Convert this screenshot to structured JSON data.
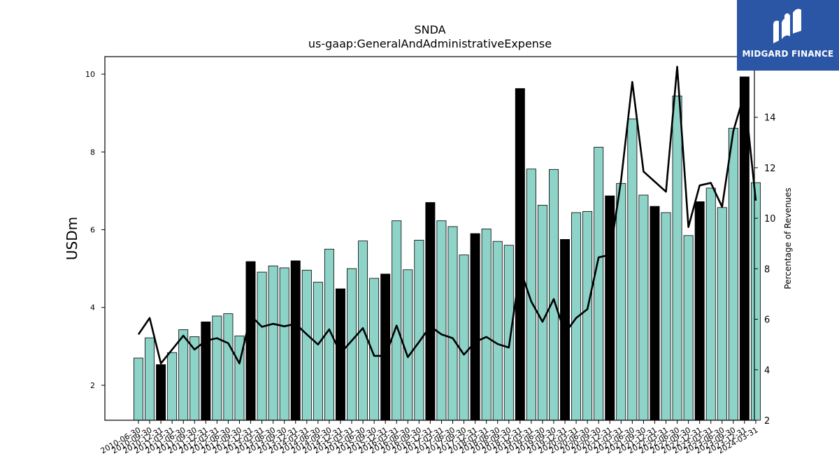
{
  "chart_data": {
    "type": "bar",
    "title": "SNDA",
    "subtitle": "us-gaap:GeneralAndAdministrativeExpense",
    "ylabel": "USDm",
    "y2label": "Percentage of Revenues",
    "ylim": [
      1.1,
      10.45
    ],
    "y2lim": [
      2,
      16.4
    ],
    "yticks": [
      2,
      4,
      6,
      8,
      10
    ],
    "y2ticks": [
      2,
      4,
      6,
      8,
      10,
      12,
      14
    ],
    "categories": [
      "2010-06-30",
      "2010-09-30",
      "2010-12-31",
      "2011-03-31",
      "2011-06-30",
      "2011-09-30",
      "2011-12-31",
      "2012-03-31",
      "2012-06-30",
      "2012-09-30",
      "2012-12-31",
      "2013-03-31",
      "2013-06-30",
      "2013-09-30",
      "2013-12-31",
      "2014-03-31",
      "2014-06-30",
      "2014-09-30",
      "2014-12-31",
      "2015-03-31",
      "2015-06-30",
      "2015-09-30",
      "2015-12-31",
      "2016-03-31",
      "2016-06-30",
      "2016-09-30",
      "2016-12-31",
      "2017-03-31",
      "2017-06-30",
      "2017-09-30",
      "2017-12-31",
      "2018-03-31",
      "2018-06-30",
      "2018-09-30",
      "2018-12-31",
      "2019-03-31",
      "2019-06-30",
      "2019-09-30",
      "2019-12-31",
      "2020-03-31",
      "2020-06-30",
      "2020-09-30",
      "2020-12-31",
      "2021-03-31",
      "2021-06-30",
      "2021-09-30",
      "2021-12-31",
      "2022-03-31",
      "2022-06-30",
      "2022-09-30",
      "2022-12-31",
      "2023-03-31",
      "2023-06-30",
      "2023-09-30",
      "2023-12-31",
      "2024-03-31"
    ],
    "xtick_labels": [
      "2010-06-30",
      "2010-09-30",
      "2010-12-31",
      "2011-03-31",
      "2011-06-30",
      "2011-09-30",
      "2011-12-31",
      "2012-03-31",
      "2012-06-30",
      "2012-09-30",
      "2012-12-31",
      "2013-03-31",
      "2013-06-30",
      "2013-09-30",
      "2013-12-31",
      "2014-03-31",
      "2014-06-30",
      "2014-09-30",
      "2014-12-31",
      "2015-03-31",
      "2015-06-30",
      "2015-09-30",
      "2015-12-31",
      "2016-03-31",
      "2016-06-30",
      "2016-09-30",
      "2016-12-31",
      "2017-03-31",
      "2017-06-30",
      "2017-09-30",
      "2017-12-31",
      "2018-03-31",
      "2018-06-30",
      "2018-09-30",
      "2018-12-31",
      "2019-03-31",
      "2019-06-30",
      "2019-09-30",
      "2019-12-31",
      "2020-03-31",
      "2020-06-30",
      "2020-09-30",
      "2020-12-31",
      "2021-03-31",
      "2021-06-30",
      "2021-09-30",
      "2021-12-31",
      "2022-03-31",
      "2022-06-30",
      "2022-09-30",
      "2022-12-31",
      "2023-03-31",
      "2023-06-30",
      "2023-09-30",
      "2023-12-31",
      "2024-03-31"
    ],
    "series": [
      {
        "type": "bar",
        "axis": "left",
        "values": [
          2.7,
          3.22,
          2.53,
          2.84,
          3.43,
          3.25,
          3.63,
          3.78,
          3.84,
          3.27,
          5.18,
          4.91,
          5.07,
          5.02,
          5.2,
          4.96,
          4.65,
          5.5,
          4.48,
          5.0,
          5.71,
          4.75,
          4.86,
          6.23,
          4.97,
          5.73,
          6.7,
          6.23,
          6.08,
          5.35,
          5.9,
          6.02,
          5.7,
          5.6,
          9.63,
          7.56,
          6.63,
          7.55,
          5.75,
          6.44,
          6.47,
          8.12,
          6.87,
          7.19,
          8.85,
          6.89,
          6.6,
          6.44,
          9.44,
          5.85,
          6.72,
          7.07,
          6.57,
          8.61,
          9.93,
          7.21
        ],
        "highlight": [
          false,
          false,
          true,
          false,
          false,
          false,
          true,
          false,
          false,
          false,
          true,
          false,
          false,
          false,
          true,
          false,
          false,
          false,
          true,
          false,
          false,
          false,
          true,
          false,
          false,
          false,
          true,
          false,
          false,
          false,
          true,
          false,
          false,
          false,
          true,
          false,
          false,
          false,
          true,
          false,
          false,
          false,
          true,
          false,
          false,
          false,
          true,
          false,
          false,
          false,
          true,
          false,
          false,
          false,
          true,
          false
        ]
      },
      {
        "type": "line",
        "axis": "right",
        "values": [
          5.4,
          6.05,
          4.25,
          4.8,
          5.35,
          4.8,
          5.15,
          5.25,
          5.05,
          4.25,
          6.15,
          5.7,
          5.82,
          5.72,
          5.82,
          5.4,
          5.0,
          5.6,
          4.65,
          5.15,
          5.65,
          4.55,
          4.55,
          5.75,
          4.5,
          5.1,
          5.72,
          5.4,
          5.25,
          4.6,
          5.1,
          5.3,
          5.02,
          4.88,
          8.0,
          6.7,
          5.9,
          6.8,
          5.45,
          6.05,
          6.4,
          8.45,
          8.55,
          11.5,
          15.4,
          11.85,
          11.45,
          11.05,
          16.0,
          9.65,
          11.3,
          11.4,
          10.45,
          13.45,
          14.95,
          10.7
        ]
      }
    ],
    "colors": {
      "bar": "#8dd3c7",
      "bar_highlight": "#000000",
      "line": "#000000"
    }
  },
  "logo": {
    "text": "MIDGARD FINANCE",
    "icon": "midgard-logo-icon",
    "background": "#2b56a6"
  }
}
